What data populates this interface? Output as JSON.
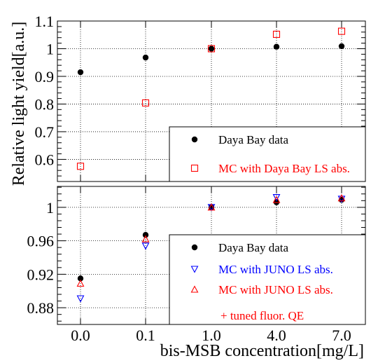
{
  "chart_data": [
    {
      "type": "scatter",
      "panel": "top",
      "ylabel": "Relative light yield[a.u.]",
      "ylim": [
        0.52,
        1.1
      ],
      "yticks": [
        0.6,
        0.7,
        0.8,
        0.9,
        1.0,
        1.1
      ],
      "yticklabels": [
        "0.6",
        "0.7",
        "0.8",
        "0.9",
        "1",
        "1.1"
      ],
      "categories": [
        "0.0",
        "0.1",
        "1.0",
        "4.0",
        "7.0"
      ],
      "grid": true,
      "legend": "bottom-right",
      "series": [
        {
          "name": "Daya Bay data",
          "marker": "filled-circle",
          "color": "#000000",
          "values": [
            0.915,
            0.968,
            1.0,
            1.007,
            1.009
          ]
        },
        {
          "name": "MC with Daya Bay LS abs.",
          "marker": "open-square",
          "color": "#ff0000",
          "values": [
            0.575,
            0.804,
            1.0,
            1.052,
            1.063
          ]
        }
      ]
    },
    {
      "type": "scatter",
      "panel": "bottom",
      "xlabel": "bis-MSB concentration[mg/L]",
      "ylim": [
        0.86,
        1.025
      ],
      "yticks": [
        0.88,
        0.92,
        0.96,
        1.0
      ],
      "yticklabels": [
        "0.88",
        "0.92",
        "0.96",
        "1"
      ],
      "categories": [
        "0.0",
        "0.1",
        "1.0",
        "4.0",
        "7.0"
      ],
      "grid": true,
      "legend": "bottom-right",
      "series": [
        {
          "name": "Daya Bay data",
          "marker": "filled-circle",
          "color": "#000000",
          "values": [
            0.915,
            0.967,
            1.0,
            1.006,
            1.009
          ]
        },
        {
          "name": "MC with JUNO LS abs.",
          "marker": "open-triangle-down",
          "color": "#0000ff",
          "values": [
            0.891,
            0.954,
            1.0,
            1.012,
            1.01
          ]
        },
        {
          "name": "MC with JUNO LS abs.",
          "name_line2": "+ tuned fluor. QE",
          "marker": "open-triangle-up",
          "color": "#ff0000",
          "values": [
            0.909,
            0.962,
            1.0,
            1.009,
            1.011
          ]
        }
      ]
    }
  ]
}
